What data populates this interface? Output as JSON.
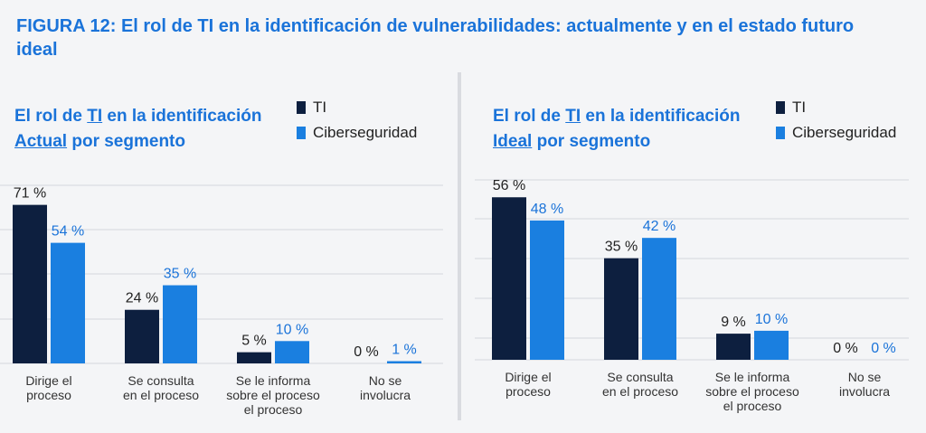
{
  "figure_title": "FIGURA 12: El rol de TI en la identificación de vulnerabilidades: actualmente y en el estado futuro ideal",
  "colors": {
    "ti": "#0d1f3f",
    "ciber": "#1a7fe0",
    "accent": "#1a73d9",
    "grid": "#d4d7dc"
  },
  "panels": [
    {
      "title_pre": "El rol de ",
      "title_u1": "TI",
      "title_mid": " en la identificación",
      "title_u2": "Actual",
      "title_post": " por segmento",
      "legend_ti": "TI",
      "legend_ciber": "Ciberseguridad"
    },
    {
      "title_pre": "El rol de ",
      "title_u1": "TI",
      "title_mid": " en la identificación",
      "title_u2": "Ideal",
      "title_post": " por segmento",
      "legend_ti": "TI",
      "legend_ciber": "Ciberseguridad"
    }
  ],
  "chart_data": [
    {
      "type": "bar",
      "categories": [
        "Dirige el proceso",
        "Se consulta en el proceso",
        "Se le informa sobre el proceso el proceso",
        "No se involucra"
      ],
      "category_lines": [
        [
          "Dirige el",
          "proceso"
        ],
        [
          "Se consulta",
          "en el proceso"
        ],
        [
          "Se le informa",
          "sobre el proceso",
          "el proceso"
        ],
        [
          "No se",
          "involucra"
        ]
      ],
      "series": [
        {
          "name": "TI",
          "values": [
            71,
            24,
            5,
            0
          ],
          "labels": [
            "71 %",
            "24 %",
            "5 %",
            "0 %"
          ]
        },
        {
          "name": "Ciberseguridad",
          "values": [
            54,
            35,
            10,
            1
          ],
          "labels": [
            "54 %",
            "35 %",
            "10 %",
            "1 %"
          ]
        }
      ],
      "ylim": [
        0,
        80
      ],
      "grid": true
    },
    {
      "type": "bar",
      "categories": [
        "Dirige el proceso",
        "Se consulta en el proceso",
        "Se le informa sobre el proceso el proceso",
        "No se involucra"
      ],
      "category_lines": [
        [
          "Dirige el",
          "proceso"
        ],
        [
          "Se consulta",
          "en el proceso"
        ],
        [
          "Se le informa",
          "sobre el proceso",
          "el proceso"
        ],
        [
          "No se",
          "involucra"
        ]
      ],
      "series": [
        {
          "name": "TI",
          "values": [
            56,
            35,
            9,
            0
          ],
          "labels": [
            "56 %",
            "35 %",
            "9 %",
            "0 %"
          ]
        },
        {
          "name": "Ciberseguridad",
          "values": [
            48,
            42,
            10,
            0
          ],
          "labels": [
            "48 %",
            "42 %",
            "10 %",
            "0 %"
          ]
        }
      ],
      "ylim": [
        0,
        80
      ],
      "grid": true
    }
  ]
}
